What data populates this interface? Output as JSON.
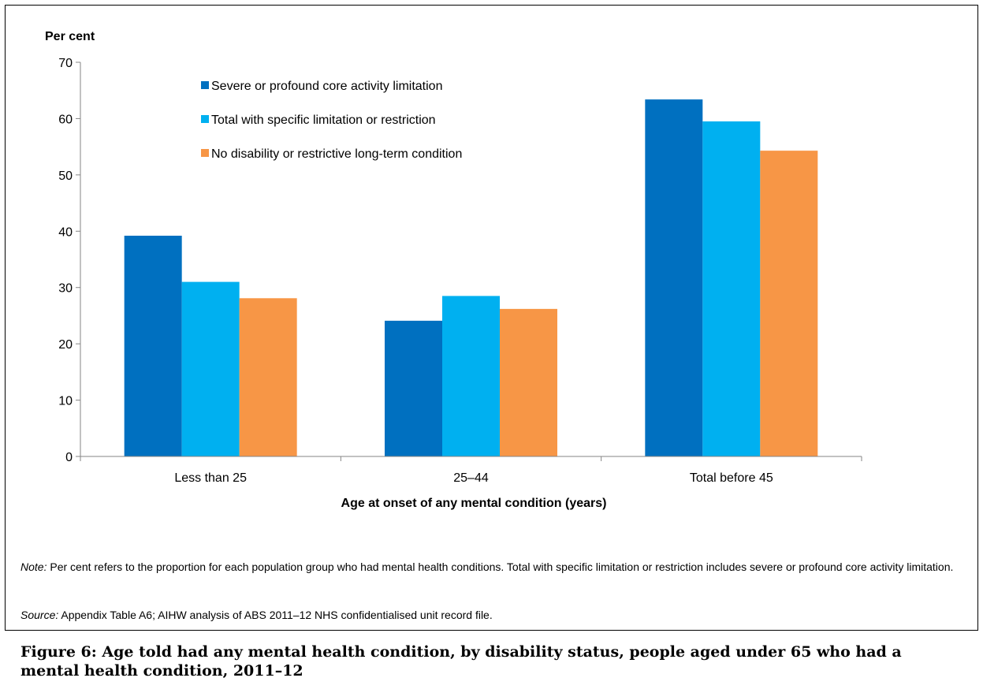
{
  "chart_data": {
    "type": "bar",
    "ylabel": "Per cent",
    "xlabel": "Age at onset of any mental condition (years)",
    "categories": [
      "Less than 25",
      "25–44",
      "Total before 45"
    ],
    "series": [
      {
        "name": "Severe or profound core activity limitation",
        "color": "#0070C0",
        "values": [
          39.2,
          24.1,
          63.4
        ]
      },
      {
        "name": "Total with specific limitation or restriction",
        "color": "#00B0F0",
        "values": [
          31.0,
          28.5,
          59.5
        ]
      },
      {
        "name": "No disability or restrictive long-term condition",
        "color": "#F79646",
        "values": [
          28.1,
          26.2,
          54.3
        ]
      }
    ],
    "ylim": [
      0,
      70
    ],
    "yticks": [
      0,
      10,
      20,
      30,
      40,
      50,
      60,
      70
    ],
    "grid": false,
    "legend": "top-left"
  },
  "notes": {
    "note_prefix": "Note:",
    "note_text": " Per cent refers to the proportion for each population group who had mental health conditions. Total with specific limitation or restriction includes severe or profound core activity limitation.",
    "source_prefix": "Source:",
    "source_text": " Appendix Table A6; AIHW analysis of ABS 2011–12 NHS confidentialised unit record file."
  },
  "caption": "Figure 6: Age told had any mental health condition, by disability status, people aged under 65 who had a mental health condition, 2011–12"
}
